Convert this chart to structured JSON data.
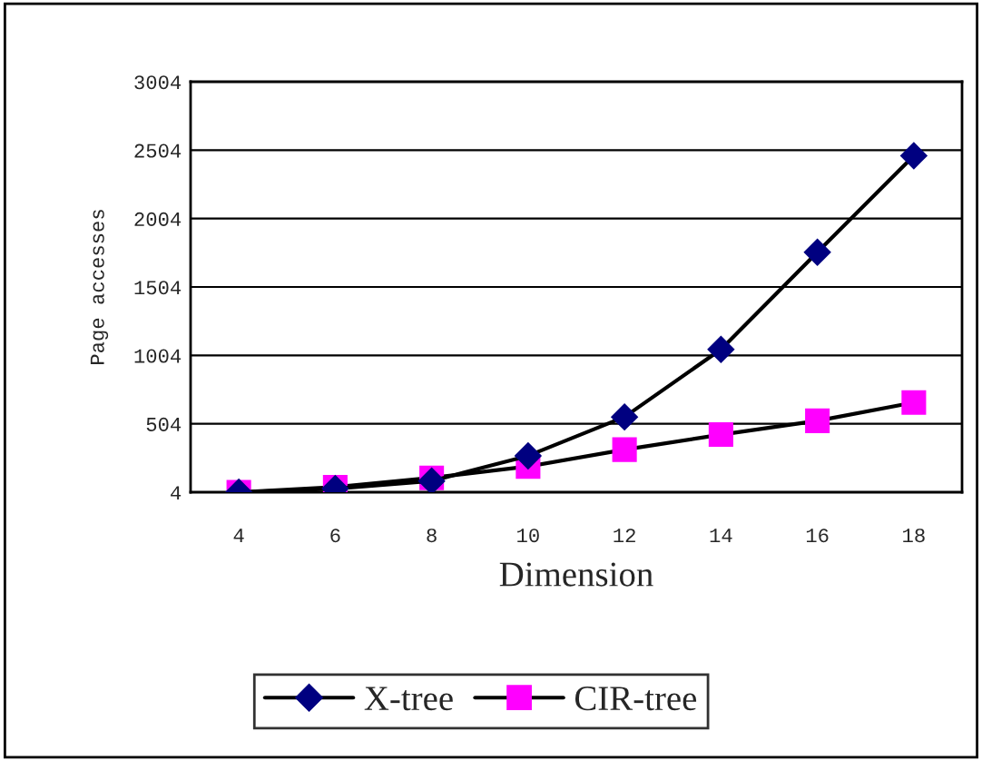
{
  "chart_data": {
    "type": "line",
    "xlabel": "Dimension",
    "ylabel": "Page accesses",
    "categories": [
      "4",
      "6",
      "8",
      "10",
      "12",
      "14",
      "16",
      "18"
    ],
    "series": [
      {
        "name": "X-tree",
        "color": "#000080",
        "marker": "diamond",
        "values": [
          4,
          30,
          86,
          270,
          554,
          1048,
          1758,
          2463
        ]
      },
      {
        "name": "CIR-tree",
        "color": "#ff00ff",
        "marker": "square",
        "values": [
          4,
          41,
          109,
          192,
          315,
          425,
          526,
          659
        ]
      }
    ],
    "ylim": [
      4,
      3004
    ],
    "yticks": [
      4,
      504,
      1004,
      1504,
      2004,
      2504,
      3004
    ],
    "grid": "y",
    "legend": "bottom",
    "line_style": "solid"
  }
}
